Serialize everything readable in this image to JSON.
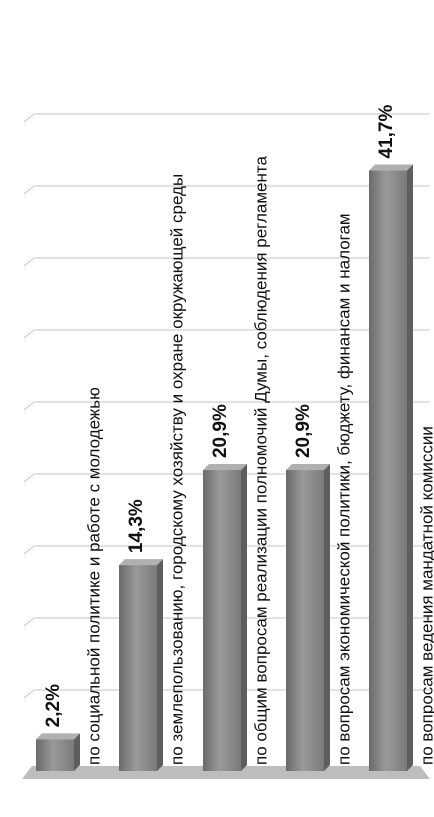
{
  "chart_data": {
    "type": "bar",
    "orientation": "vertical",
    "categories": [
      "по социальной политике и работе с молодежью",
      "по землепользованию, городскому хозяйству и охране окружающей среды",
      "по общим вопросам реализации полномочий Думы, соблюдения регламента",
      "по вопросам экономической политики, бюджету, финансам и налогам",
      "по вопросам ведения мандатной комиссии"
    ],
    "values": [
      2.2,
      14.3,
      20.9,
      20.9,
      41.7
    ],
    "value_labels": [
      "2,2%",
      "14,3%",
      "20,9%",
      "20,9%",
      "41,7%"
    ],
    "ylim": [
      0,
      45
    ],
    "grid": true,
    "legend": "none",
    "colors": {
      "bar": "#8a8a8a",
      "bar_dark": "#5e5e5e",
      "bar_light": "#b0b0b0",
      "grid": "#c4c4c4",
      "floor": "#bdbdbd"
    }
  }
}
